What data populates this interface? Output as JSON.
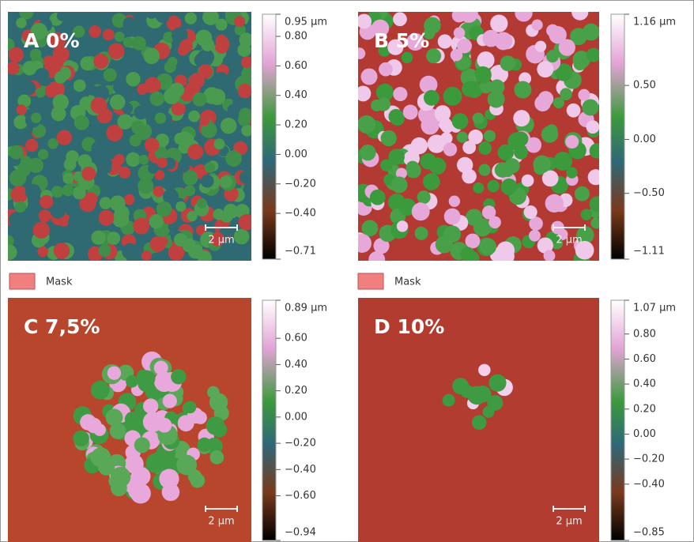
{
  "panels": [
    {
      "label": "A 0%",
      "scale_bar": "2 µm",
      "colorbar": {
        "ylim": [
          -0.71,
          0.95
        ],
        "ticks": [
          {
            "value": 0.95,
            "label": "0.95 µm"
          },
          {
            "value": 0.8,
            "label": "0.80"
          },
          {
            "value": 0.6,
            "label": "0.60"
          },
          {
            "value": 0.4,
            "label": "0.40"
          },
          {
            "value": 0.2,
            "label": "0.20"
          },
          {
            "value": 0,
            "label": "0.00"
          },
          {
            "value": -0.2,
            "label": "−0.20"
          },
          {
            "value": -0.4,
            "label": "−0.40"
          },
          {
            "value": -0.71,
            "label": "−0.71"
          }
        ]
      }
    },
    {
      "label": "B 5%",
      "scale_bar": "2 µm",
      "colorbar": {
        "ylim": [
          -1.11,
          1.16
        ],
        "ticks": [
          {
            "value": 1.16,
            "label": "1.16 µm"
          },
          {
            "value": 0.5,
            "label": "0.50"
          },
          {
            "value": 0,
            "label": "0.00"
          },
          {
            "value": -0.5,
            "label": "−0.50"
          },
          {
            "value": -1.11,
            "label": "−1.11"
          }
        ]
      }
    },
    {
      "label": "C 7,5%",
      "scale_bar": "2 µm",
      "colorbar": {
        "ylim": [
          -0.94,
          0.89
        ],
        "ticks": [
          {
            "value": 0.89,
            "label": "0.89 µm"
          },
          {
            "value": 0.6,
            "label": "0.60"
          },
          {
            "value": 0.4,
            "label": "0.40"
          },
          {
            "value": 0.2,
            "label": "0.20"
          },
          {
            "value": 0,
            "label": "0.00"
          },
          {
            "value": -0.2,
            "label": "−0.20"
          },
          {
            "value": -0.4,
            "label": "−0.40"
          },
          {
            "value": -0.6,
            "label": "−0.60"
          },
          {
            "value": -0.94,
            "label": "−0.94"
          }
        ]
      }
    },
    {
      "label": "D 10%",
      "scale_bar": "2 µm",
      "colorbar": {
        "ylim": [
          -0.85,
          1.07
        ],
        "ticks": [
          {
            "value": 1.07,
            "label": "1.07 µm"
          },
          {
            "value": 0.8,
            "label": "0.80"
          },
          {
            "value": 0.6,
            "label": "0.60"
          },
          {
            "value": 0.4,
            "label": "0.40"
          },
          {
            "value": 0.2,
            "label": "0.20"
          },
          {
            "value": 0,
            "label": "0.00"
          },
          {
            "value": -0.2,
            "label": "−0.20"
          },
          {
            "value": -0.4,
            "label": "−0.40"
          },
          {
            "value": -0.85,
            "label": "−0.85"
          }
        ]
      }
    }
  ],
  "mask_legends": [
    "Mask",
    "Mask"
  ]
}
